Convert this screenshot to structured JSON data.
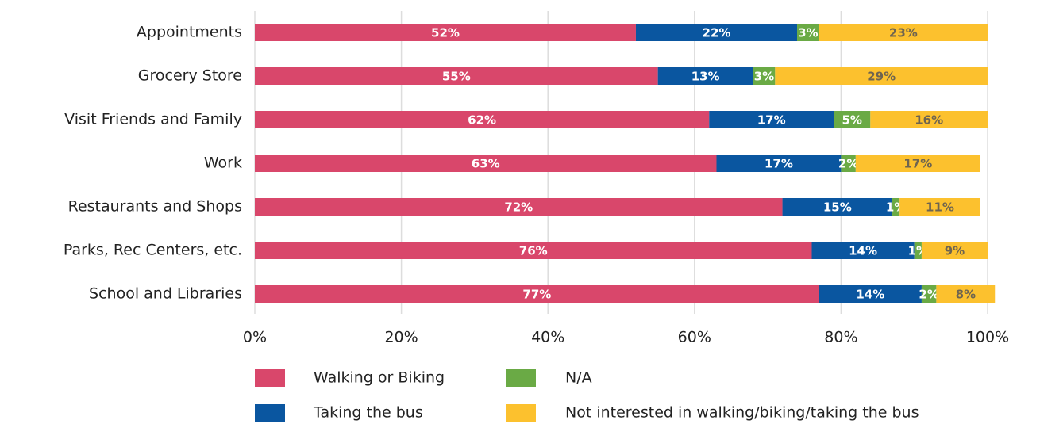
{
  "chart_data": {
    "type": "stacked-bar-horizontal",
    "categories": [
      "Appointments",
      "Grocery Store",
      "Visit Friends and Family",
      "Work",
      "Restaurants and Shops",
      "Parks, Rec Centers, etc.",
      "School and Libraries"
    ],
    "series": [
      {
        "name": "Walking or Biking",
        "color": "#d9476b",
        "values": [
          52,
          55,
          62,
          63,
          72,
          76,
          77
        ],
        "value_labels": [
          "52%",
          "55%",
          "62%",
          "63%",
          "72%",
          "76%",
          "77%"
        ]
      },
      {
        "name": "Taking the bus",
        "color": "#0a56a0",
        "values": [
          22,
          13,
          17,
          17,
          15,
          14,
          14
        ],
        "value_labels": [
          "22%",
          "13%",
          "17%",
          "17%",
          "15%",
          "14%",
          "14%"
        ]
      },
      {
        "name": "N/A",
        "color": "#6aaa45",
        "values": [
          3,
          3,
          5,
          2,
          1,
          1,
          2
        ],
        "value_labels": [
          "3%",
          "3%",
          "5%",
          "2%",
          "1%",
          "1%",
          "2%"
        ]
      },
      {
        "name": "Not interested in walking/biking/taking the bus",
        "color": "#fcc12e",
        "values": [
          23,
          29,
          16,
          17,
          11,
          9,
          8
        ],
        "value_labels": [
          "23%",
          "29%",
          "16%",
          "17%",
          "11%",
          "9%",
          "8%"
        ]
      }
    ],
    "xlim": [
      0,
      100
    ],
    "xticks": [
      {
        "value": 0,
        "label": "0%"
      },
      {
        "value": 20,
        "label": "20%"
      },
      {
        "value": 40,
        "label": "40%"
      },
      {
        "value": 60,
        "label": "60%"
      },
      {
        "value": 80,
        "label": "80%"
      },
      {
        "value": 100,
        "label": "100%"
      }
    ],
    "grid": true,
    "legend": "bottom"
  }
}
